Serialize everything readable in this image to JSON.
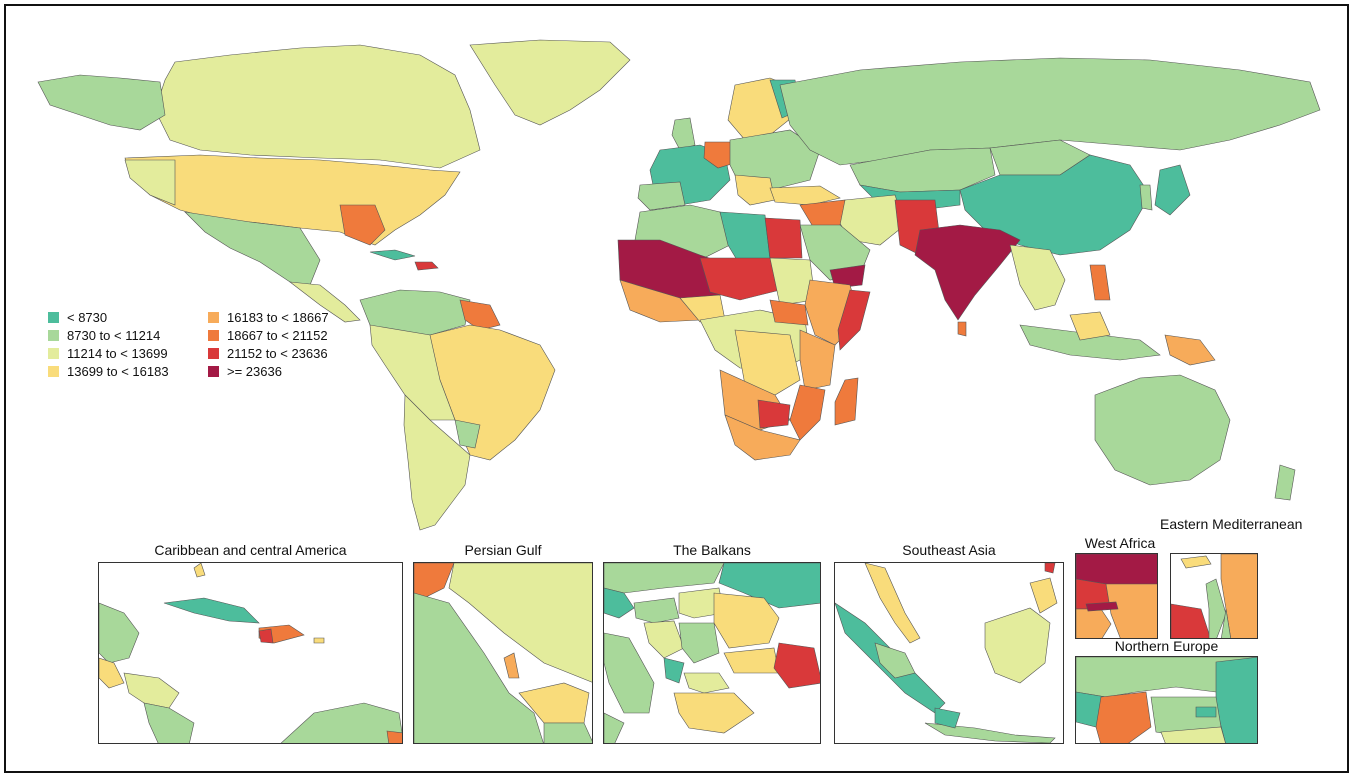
{
  "legend": {
    "items": [
      {
        "label": "< 8730",
        "color": "#4dbd9c"
      },
      {
        "label": "8730 to < 11214",
        "color": "#a8d89a"
      },
      {
        "label": "11214 to < 13699",
        "color": "#e3ec9c"
      },
      {
        "label": "13699 to < 16183",
        "color": "#f9dc7b"
      },
      {
        "label": "16183 to < 18667",
        "color": "#f7ab5a"
      },
      {
        "label": "18667 to < 21152",
        "color": "#ef7a3c"
      },
      {
        "label": "21152 to < 23636",
        "color": "#d9393a"
      },
      {
        "label": ">= 23636",
        "color": "#a31a45"
      }
    ]
  },
  "insets": {
    "caribbean": {
      "title": "Caribbean and central America"
    },
    "persian_gulf": {
      "title": "Persian Gulf"
    },
    "balkans": {
      "title": "The Balkans"
    },
    "southeast_asia": {
      "title": "Southeast Asia"
    },
    "west_africa": {
      "title": "West Africa"
    },
    "eastern_med": {
      "title": "Eastern Mediterranean"
    },
    "northern_europe": {
      "title": "Northern Europe"
    }
  }
}
